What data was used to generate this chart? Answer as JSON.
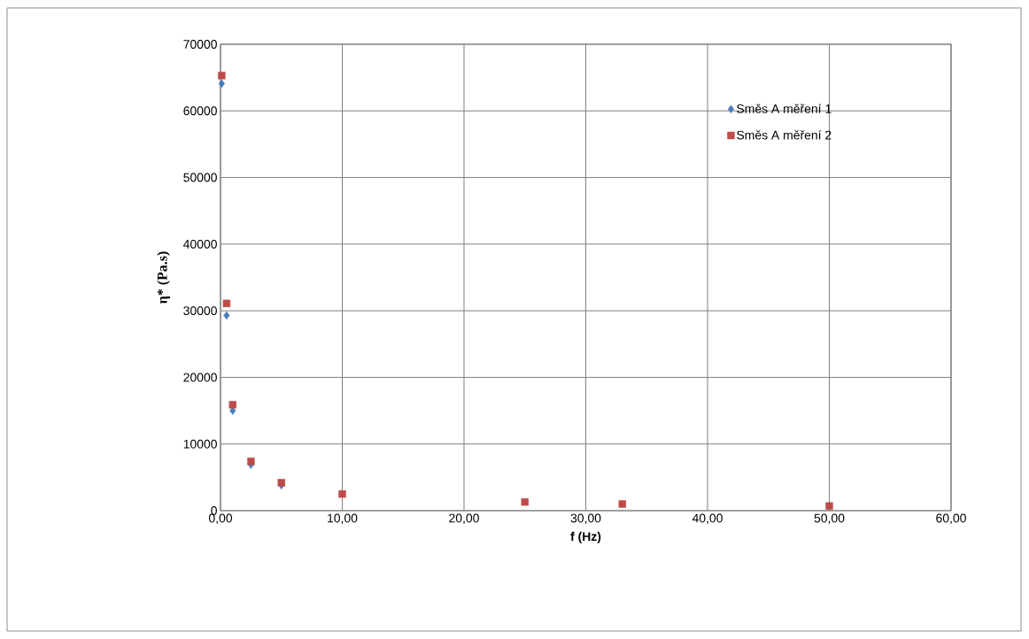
{
  "chart_data": {
    "type": "scatter",
    "xlabel": "f (Hz)",
    "ylabel": "η* (Pa.s)",
    "xlim": [
      0,
      60
    ],
    "ylim": [
      0,
      70000
    ],
    "xticks": [
      {
        "value": 0,
        "label": "0,00"
      },
      {
        "value": 10,
        "label": "10,00"
      },
      {
        "value": 20,
        "label": "20,00"
      },
      {
        "value": 30,
        "label": "30,00"
      },
      {
        "value": 40,
        "label": "40,00"
      },
      {
        "value": 50,
        "label": "50,00"
      },
      {
        "value": 60,
        "label": "60,00"
      }
    ],
    "yticks": [
      0,
      10000,
      20000,
      30000,
      40000,
      50000,
      60000,
      70000
    ],
    "grid": true,
    "legend": "top right",
    "series": [
      {
        "name": "Směs A měření 1",
        "color": "#4a7ebb",
        "marker": "diamond",
        "x": [
          0.1,
          0.5,
          1,
          2.5,
          5
        ],
        "values": [
          64100,
          29300,
          15000,
          6900,
          3800
        ]
      },
      {
        "name": "Směs A měření 2",
        "color": "#be4b48",
        "marker": "square",
        "x": [
          0.1,
          0.5,
          1,
          2.5,
          5,
          10,
          25,
          33,
          50
        ],
        "values": [
          65300,
          31100,
          15900,
          7400,
          4200,
          2500,
          1300,
          1000,
          700
        ]
      }
    ]
  }
}
